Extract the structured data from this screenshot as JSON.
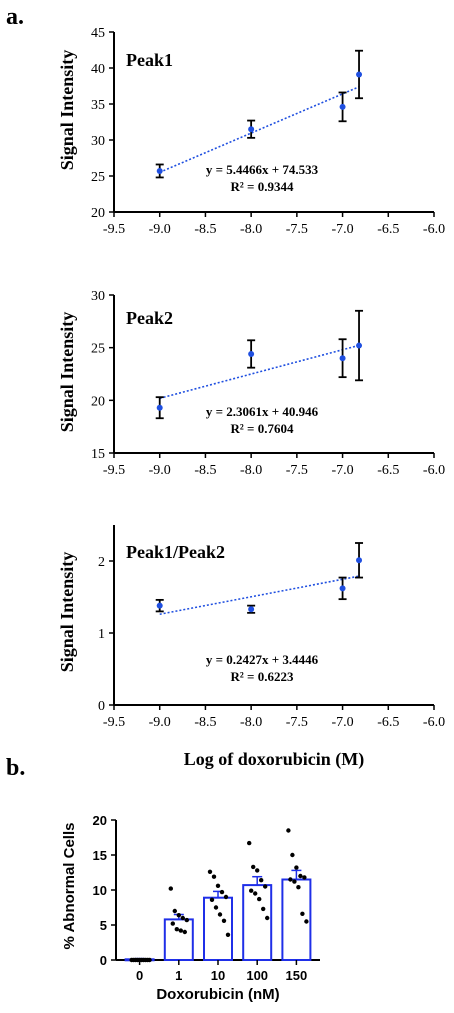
{
  "panel_labels": {
    "a": "a.",
    "b": "b."
  },
  "chart_data": [
    {
      "type": "scatter",
      "title": "Peak1",
      "ylabel": "Signal Intensity",
      "xlim": [
        -9.5,
        -6.0
      ],
      "ylim": [
        20,
        45
      ],
      "xticks": [
        "-9.5",
        "-9.0",
        "-8.5",
        "-8.0",
        "-7.5",
        "-7.0",
        "-6.5",
        "-6.0"
      ],
      "yticks": [
        "20",
        "25",
        "30",
        "35",
        "40",
        "45"
      ],
      "x": [
        -9.0,
        -8.0,
        -7.0,
        -6.82
      ],
      "y": [
        25.7,
        31.5,
        34.6,
        39.1
      ],
      "err": [
        0.9,
        1.2,
        2.0,
        3.3
      ],
      "trendline": {
        "slope": 5.4466,
        "intercept": 74.533
      },
      "equation": "y = 5.4466x + 74.533",
      "r2": "R² = 0.9344"
    },
    {
      "type": "scatter",
      "title": "Peak2",
      "ylabel": "Signal Intensity",
      "xlim": [
        -9.5,
        -6.0
      ],
      "ylim": [
        15,
        30
      ],
      "xticks": [
        "-9.5",
        "-9.0",
        "-8.5",
        "-8.0",
        "-7.5",
        "-7.0",
        "-6.5",
        "-6.0"
      ],
      "yticks": [
        "15",
        "20",
        "25",
        "30"
      ],
      "x": [
        -9.0,
        -8.0,
        -7.0,
        -6.82
      ],
      "y": [
        19.3,
        24.4,
        24.0,
        25.2
      ],
      "err": [
        1.0,
        1.3,
        1.8,
        3.3
      ],
      "trendline": {
        "slope": 2.3061,
        "intercept": 40.946
      },
      "equation": "y = 2.3061x + 40.946",
      "r2": "R² = 0.7604"
    },
    {
      "type": "scatter",
      "title": "Peak1/Peak2",
      "ylabel": "Signal Intensity",
      "xlabel": "Log of doxorubicin (M)",
      "xlim": [
        -9.5,
        -6.0
      ],
      "ylim": [
        0,
        2.5
      ],
      "xticks": [
        "-9.5",
        "-9.0",
        "-8.5",
        "-8.0",
        "-7.5",
        "-7.0",
        "-6.5",
        "-6.0"
      ],
      "yticks": [
        "0",
        "1",
        "2"
      ],
      "x": [
        -9.0,
        -8.0,
        -7.0,
        -6.82
      ],
      "y": [
        1.38,
        1.33,
        1.62,
        2.01
      ],
      "err": [
        0.08,
        0.05,
        0.15,
        0.24
      ],
      "trendline": {
        "slope": 0.2427,
        "intercept": 3.4446
      },
      "equation": "y = 0.2427x + 3.4446",
      "r2": "R² = 0.6223"
    },
    {
      "type": "bar",
      "ylabel": "% Abnormal Cells",
      "xlabel": "Doxorubicin (nM)",
      "categories": [
        "0",
        "1",
        "10",
        "100",
        "150"
      ],
      "values": [
        0.1,
        5.8,
        8.9,
        10.7,
        11.5
      ],
      "err": [
        0.1,
        0.7,
        0.9,
        1.2,
        1.3
      ],
      "ylim": [
        0,
        20
      ],
      "yticks": [
        "0",
        "5",
        "10",
        "15",
        "20"
      ],
      "points": [
        [
          0,
          0,
          0,
          0,
          0,
          0,
          0,
          0,
          0,
          0
        ],
        [
          10.2,
          7.0,
          6.4,
          6.0,
          5.7,
          5.2,
          4.4,
          4.2,
          4.0
        ],
        [
          12.6,
          11.9,
          10.6,
          9.7,
          9.0,
          8.6,
          7.5,
          6.5,
          5.6,
          3.6
        ],
        [
          16.7,
          13.3,
          12.8,
          11.4,
          10.5,
          9.9,
          9.5,
          8.7,
          7.3,
          6.0
        ],
        [
          18.5,
          15.0,
          13.2,
          12.0,
          11.8,
          11.5,
          11.2,
          10.4,
          6.6,
          5.5
        ]
      ]
    }
  ],
  "colors": {
    "point": "#1f4fe0",
    "trend": "#1f4fe0",
    "bar_edge": "#1f2fe8",
    "axis": "#000000"
  }
}
